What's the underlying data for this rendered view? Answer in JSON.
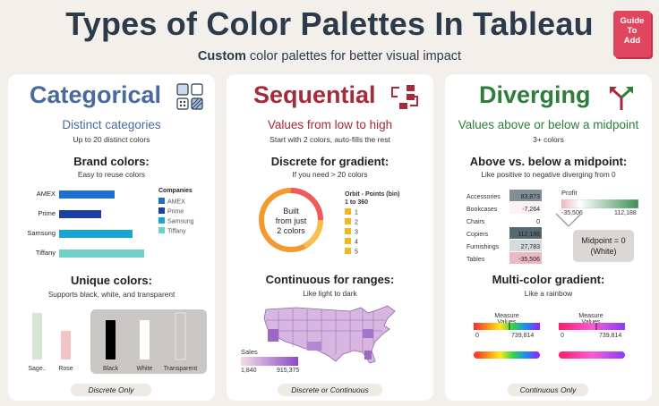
{
  "header": {
    "title": "Types of Color Palettes In Tableau",
    "subtitle_bold": "Custom",
    "subtitle_rest": " color palettes for better visual impact",
    "badge": [
      "Guide",
      "To",
      "Add"
    ]
  },
  "colors": {
    "categorical": "#4a6a9e",
    "sequential": "#a52a3a",
    "diverging": "#2e7d3c",
    "background": "#f3efea"
  },
  "categorical": {
    "title": "Categorical",
    "line1": "Distinct categories",
    "line2": "Up to 20 distinct colors",
    "brand_title": "Brand colors:",
    "brand_sub": "Easy to reuse colors",
    "legend_title": "Companies",
    "companies": [
      {
        "name": "AMEX",
        "value": 62,
        "color": "#1f6fd0"
      },
      {
        "name": "Prime",
        "value": 47,
        "color": "#1c3fa6"
      },
      {
        "name": "Samsung",
        "value": 82,
        "color": "#1aa3d6"
      },
      {
        "name": "Tiffany",
        "value": 95,
        "color": "#6fd0c9"
      }
    ],
    "unique_title": "Unique colors:",
    "unique_sub": "Supports black, white, and transparent",
    "unique_bars": [
      {
        "name": "Sage..",
        "color": "#d6e5d4"
      },
      {
        "name": "Rose",
        "color": "#f2c4c8"
      },
      {
        "name": "Black",
        "color": "#000000"
      },
      {
        "name": "White",
        "color": "#ffffff"
      },
      {
        "name": "Transparent",
        "color": "transparent"
      }
    ],
    "footer": "Discrete Only"
  },
  "sequential": {
    "title": "Sequential",
    "line1": "Values from low to high",
    "line2": "Start with 2 colors, auto-fills the rest",
    "discrete_title": "Discrete for gradient:",
    "discrete_sub": "If you need > 20 colors",
    "donut_text": [
      "Built",
      "from just",
      "2 colors"
    ],
    "legend_title": [
      "Orbit - Points (bin)",
      "1 to 360"
    ],
    "legend_items": [
      "1",
      "2",
      "3",
      "4",
      "5"
    ],
    "continuous_title": "Continuous for ranges:",
    "continuous_sub": "Like light to dark",
    "sales_label": "Sales",
    "sales_min": "1,840",
    "sales_max": "915,375",
    "footer": "Discrete or Continuous"
  },
  "diverging": {
    "title": "Diverging",
    "line1": "Values above or below a midpoint",
    "line2": "3+ colors",
    "above_title": "Above vs. below a midpoint:",
    "above_sub": "Like positive to negative diverging from 0",
    "rows": [
      {
        "name": "Accessories",
        "value": "83,873",
        "num": 83873
      },
      {
        "name": "Bookcases",
        "value": "-7,264",
        "num": -7264
      },
      {
        "name": "Chairs",
        "value": "0",
        "num": 0
      },
      {
        "name": "Copiers",
        "value": "112,188",
        "num": 112188
      },
      {
        "name": "Furnishings",
        "value": "27,783",
        "num": 27783
      },
      {
        "name": "Tables",
        "value": "-35,506",
        "num": -35506
      }
    ],
    "profit_label": "Profit",
    "profit_min": "-35,506",
    "profit_max": "112,188",
    "midpoint_note": [
      "Midpoint = 0",
      "(White)"
    ],
    "multi_title": "Multi-color gradient:",
    "multi_sub": "Like a rainbow",
    "measure_label": "Measure Values",
    "measure_min": "0",
    "measure_max": "739,814",
    "footer": "Continuous Only"
  }
}
